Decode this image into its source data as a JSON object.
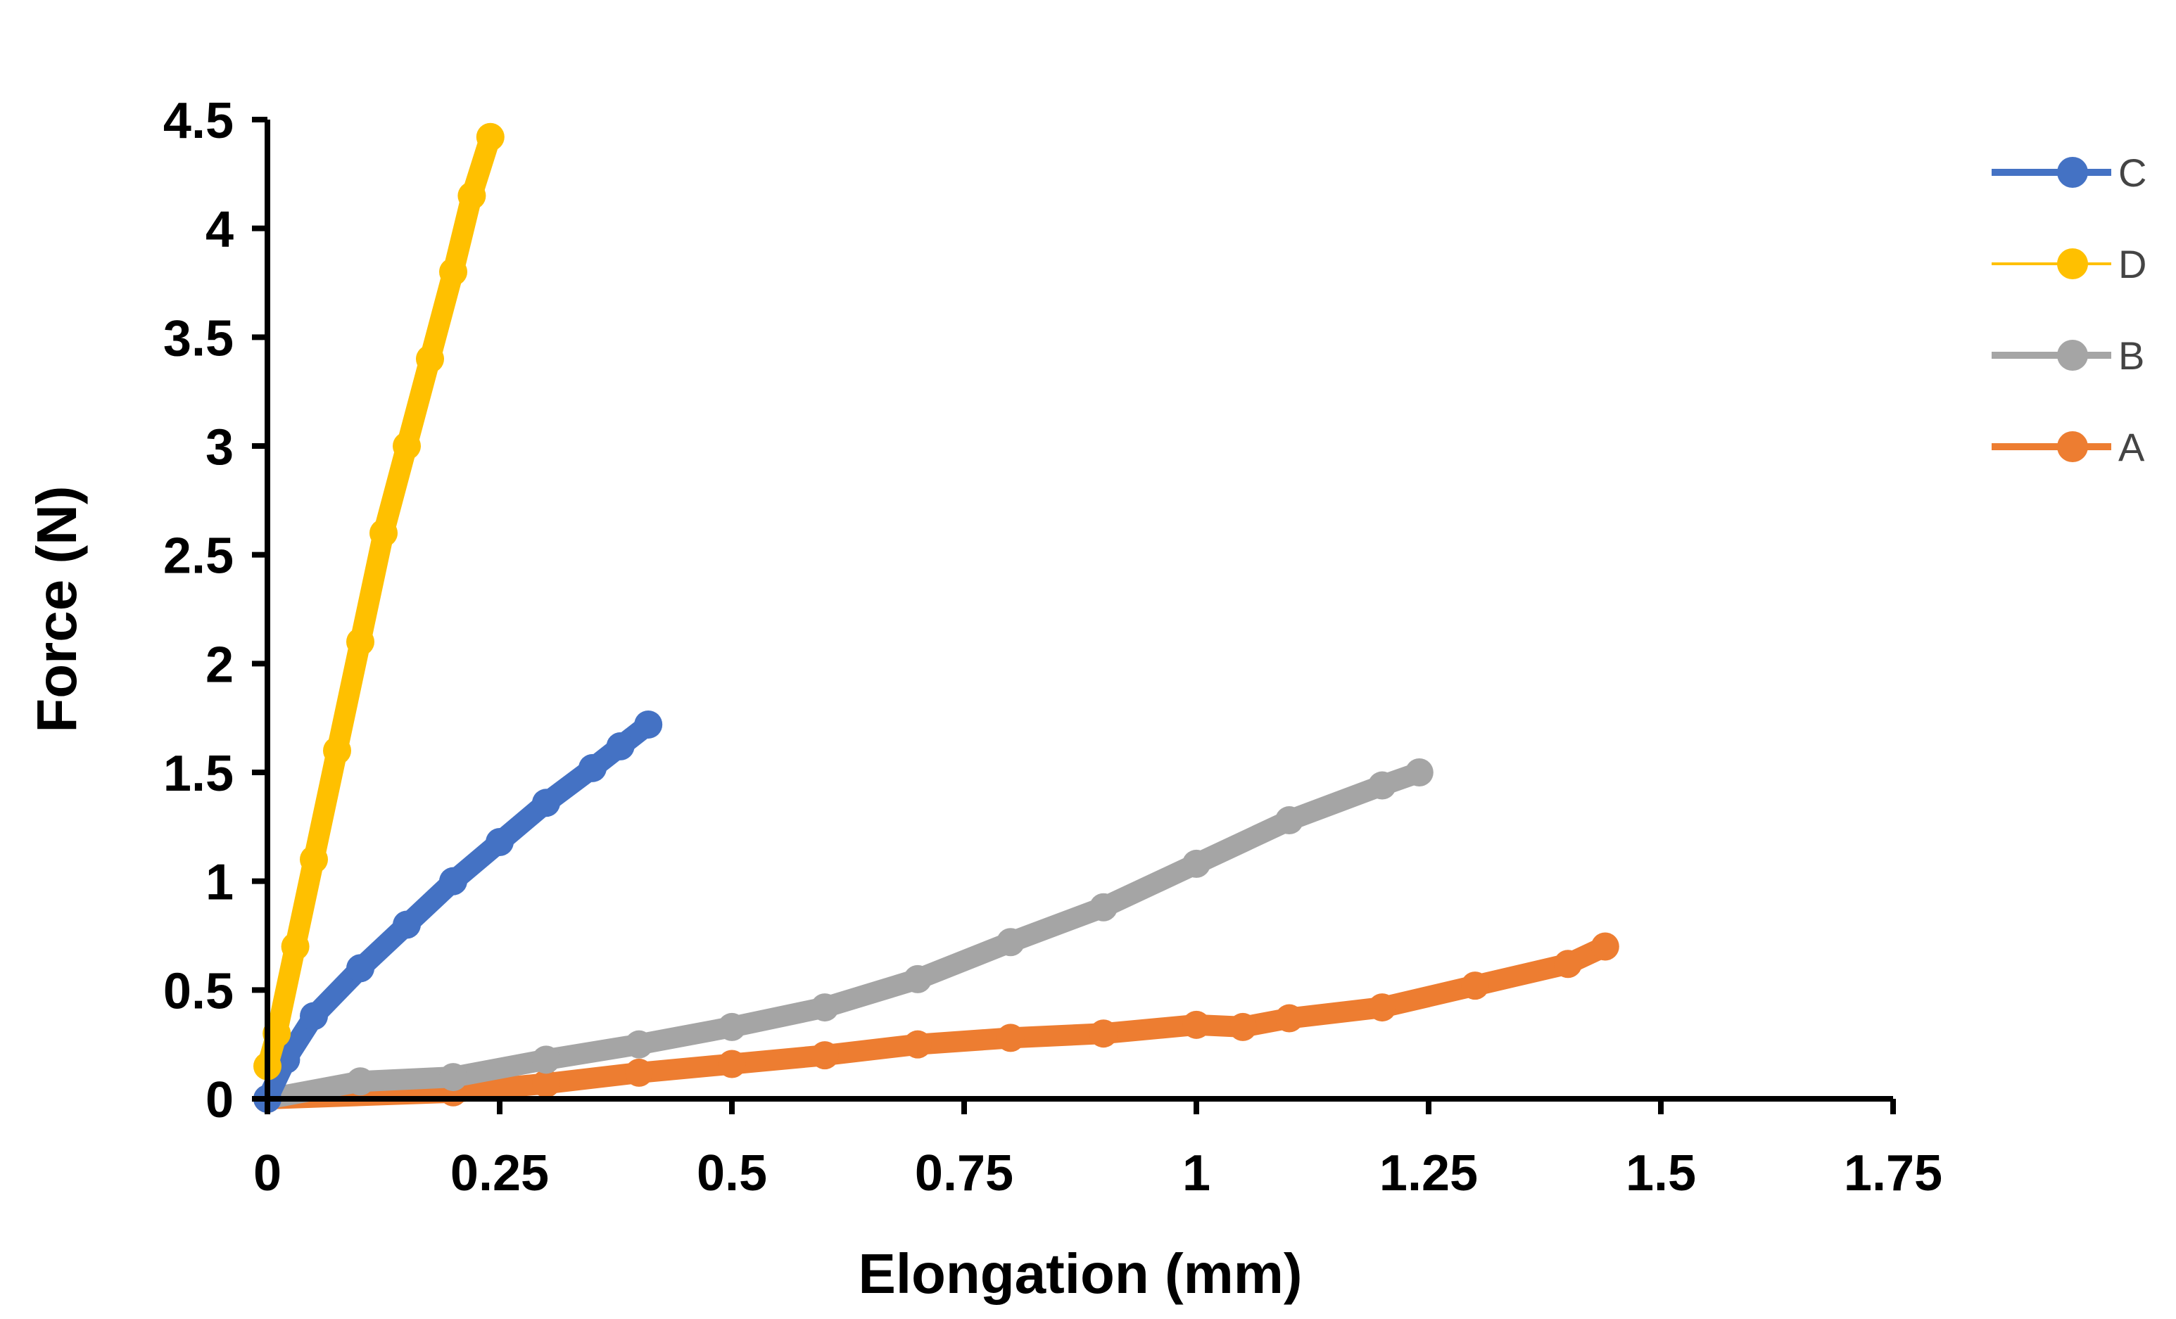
{
  "chart_data": {
    "type": "line",
    "title": "",
    "xlabel": "Elongation (mm)",
    "ylabel": "Force (N)",
    "xlim": [
      0,
      1.75
    ],
    "ylim": [
      0,
      4.5
    ],
    "x_ticks": [
      0,
      0.25,
      0.5,
      0.75,
      1,
      1.25,
      1.5,
      1.75
    ],
    "x_tick_labels": [
      "0",
      "0.25",
      "0.5",
      "0.75",
      "1",
      "1.25",
      "1.5",
      "1.75"
    ],
    "y_ticks": [
      0,
      0.5,
      1,
      1.5,
      2,
      2.5,
      3,
      3.5,
      4,
      4.5
    ],
    "y_tick_labels": [
      "0",
      "0.5",
      "1",
      "1.5",
      "2",
      "2.5",
      "3",
      "3.5",
      "4",
      "4.5"
    ],
    "grid": false,
    "legend_position": "top-right",
    "series": [
      {
        "name": "C",
        "color": "#4472C4",
        "x": [
          0,
          0.02,
          0.05,
          0.1,
          0.15,
          0.2,
          0.25,
          0.3,
          0.35,
          0.38,
          0.41
        ],
        "y": [
          0,
          0.18,
          0.38,
          0.6,
          0.8,
          1.0,
          1.18,
          1.36,
          1.52,
          1.62,
          1.72
        ]
      },
      {
        "name": "D",
        "color": "#FFC000",
        "x": [
          0,
          0.01,
          0.03,
          0.05,
          0.075,
          0.1,
          0.125,
          0.15,
          0.175,
          0.2,
          0.22,
          0.24
        ],
        "y": [
          0.15,
          0.3,
          0.7,
          1.1,
          1.6,
          2.1,
          2.6,
          3.0,
          3.4,
          3.8,
          4.15,
          4.42
        ]
      },
      {
        "name": "B",
        "color": "#A5A5A5",
        "x": [
          0,
          0.1,
          0.2,
          0.3,
          0.4,
          0.5,
          0.6,
          0.7,
          0.8,
          0.9,
          1.0,
          1.1,
          1.2,
          1.24
        ],
        "y": [
          0,
          0.08,
          0.1,
          0.18,
          0.25,
          0.33,
          0.42,
          0.55,
          0.72,
          0.88,
          1.08,
          1.28,
          1.44,
          1.5
        ]
      },
      {
        "name": "A",
        "color": "#ED7D31",
        "x": [
          0,
          0.2,
          0.3,
          0.4,
          0.5,
          0.6,
          0.7,
          0.8,
          0.9,
          1.0,
          1.05,
          1.1,
          1.2,
          1.3,
          1.4,
          1.44
        ],
        "y": [
          0,
          0.03,
          0.07,
          0.12,
          0.16,
          0.2,
          0.25,
          0.28,
          0.3,
          0.34,
          0.33,
          0.37,
          0.42,
          0.52,
          0.62,
          0.7
        ]
      }
    ],
    "legend_order": [
      "C",
      "D",
      "B",
      "A"
    ]
  }
}
